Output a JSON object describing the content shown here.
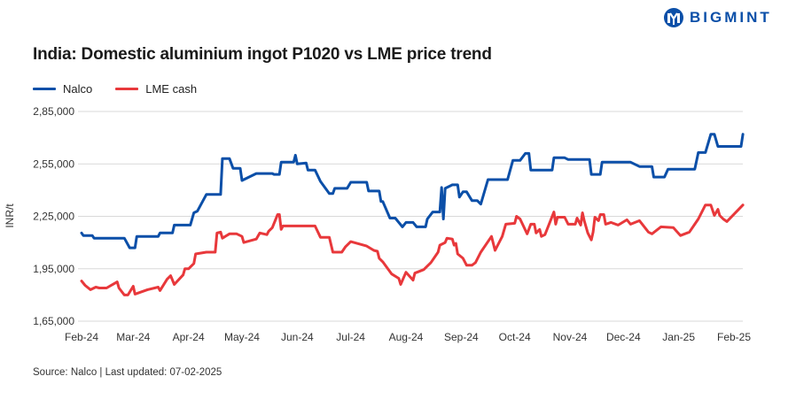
{
  "brand": {
    "name": "BIGMINT",
    "color": "#0b4fa8"
  },
  "source_note": "Source: Nalco | Last updated: 07-02-2025",
  "chart_data": {
    "type": "line",
    "title": "India: Domestic aluminium ingot P1020 vs LME price trend",
    "ylabel": "INR/t",
    "xlabel": "",
    "ylim": [
      165000,
      285000
    ],
    "xlim": [
      "2024-02-01",
      "2025-02-06"
    ],
    "grid": "horizontal",
    "legend_placement": "top-left",
    "y_ticks": [
      {
        "value": 165000,
        "label": "1,65,000"
      },
      {
        "value": 195000,
        "label": "1,95,000"
      },
      {
        "value": 225000,
        "label": "2,25,000"
      },
      {
        "value": 255000,
        "label": "2,55,000"
      },
      {
        "value": 285000,
        "label": "2,85,000"
      }
    ],
    "x_ticks": [
      {
        "value": "2024-02-01",
        "label": "Feb-24"
      },
      {
        "value": "2024-03-01",
        "label": "Mar-24"
      },
      {
        "value": "2024-04-01",
        "label": "Apr-24"
      },
      {
        "value": "2024-05-01",
        "label": "May-24"
      },
      {
        "value": "2024-06-01",
        "label": "Jun-24"
      },
      {
        "value": "2024-07-01",
        "label": "Jul-24"
      },
      {
        "value": "2024-08-01",
        "label": "Aug-24"
      },
      {
        "value": "2024-09-01",
        "label": "Sep-24"
      },
      {
        "value": "2024-10-01",
        "label": "Oct-24"
      },
      {
        "value": "2024-11-01",
        "label": "Nov-24"
      },
      {
        "value": "2024-12-01",
        "label": "Dec-24"
      },
      {
        "value": "2025-01-01",
        "label": "Jan-25"
      },
      {
        "value": "2025-02-01",
        "label": "Feb-25"
      }
    ],
    "series": [
      {
        "name": "Nalco",
        "color": "#0b4fa8",
        "points": [
          [
            "2024-02-01",
            215500
          ],
          [
            "2024-02-02",
            214000
          ],
          [
            "2024-02-07",
            214000
          ],
          [
            "2024-02-08",
            212500
          ],
          [
            "2024-02-25",
            212500
          ],
          [
            "2024-02-28",
            207000
          ],
          [
            "2024-03-02",
            207000
          ],
          [
            "2024-03-03",
            213500
          ],
          [
            "2024-03-15",
            213500
          ],
          [
            "2024-03-16",
            215500
          ],
          [
            "2024-03-23",
            215500
          ],
          [
            "2024-03-24",
            220000
          ],
          [
            "2024-04-02",
            220000
          ],
          [
            "2024-04-04",
            227000
          ],
          [
            "2024-04-06",
            228000
          ],
          [
            "2024-04-11",
            237500
          ],
          [
            "2024-04-19",
            237500
          ],
          [
            "2024-04-20",
            258000
          ],
          [
            "2024-04-24",
            258000
          ],
          [
            "2024-04-26",
            252500
          ],
          [
            "2024-04-30",
            252500
          ],
          [
            "2024-05-01",
            245500
          ],
          [
            "2024-05-09",
            249500
          ],
          [
            "2024-05-18",
            249500
          ],
          [
            "2024-05-19",
            249000
          ],
          [
            "2024-05-22",
            249000
          ],
          [
            "2024-05-23",
            256000
          ],
          [
            "2024-05-30",
            256000
          ],
          [
            "2024-05-31",
            260000
          ],
          [
            "2024-06-01",
            255000
          ],
          [
            "2024-06-06",
            255500
          ],
          [
            "2024-06-07",
            251500
          ],
          [
            "2024-06-11",
            251500
          ],
          [
            "2024-06-14",
            245000
          ],
          [
            "2024-06-19",
            238000
          ],
          [
            "2024-06-21",
            238000
          ],
          [
            "2024-06-22",
            241000
          ],
          [
            "2024-06-29",
            241000
          ],
          [
            "2024-07-01",
            244500
          ],
          [
            "2024-07-10",
            244500
          ],
          [
            "2024-07-11",
            239500
          ],
          [
            "2024-07-17",
            239500
          ],
          [
            "2024-07-18",
            233500
          ],
          [
            "2024-07-19",
            233500
          ],
          [
            "2024-07-23",
            224000
          ],
          [
            "2024-07-26",
            224000
          ],
          [
            "2024-07-30",
            219000
          ],
          [
            "2024-08-01",
            221500
          ],
          [
            "2024-08-05",
            221500
          ],
          [
            "2024-08-07",
            219000
          ],
          [
            "2024-08-12",
            219000
          ],
          [
            "2024-08-13",
            223500
          ],
          [
            "2024-08-16",
            227500
          ],
          [
            "2024-08-20",
            227500
          ],
          [
            "2024-08-21",
            241500
          ],
          [
            "2024-08-22",
            223500
          ],
          [
            "2024-08-23",
            241000
          ],
          [
            "2024-08-27",
            243000
          ],
          [
            "2024-08-30",
            243000
          ],
          [
            "2024-08-31",
            236000
          ],
          [
            "2024-09-02",
            239000
          ],
          [
            "2024-09-04",
            239000
          ],
          [
            "2024-09-07",
            234000
          ],
          [
            "2024-09-10",
            234000
          ],
          [
            "2024-09-12",
            232000
          ],
          [
            "2024-09-16",
            246000
          ],
          [
            "2024-09-27",
            246000
          ],
          [
            "2024-09-30",
            257000
          ],
          [
            "2024-10-04",
            257000
          ],
          [
            "2024-10-07",
            261000
          ],
          [
            "2024-10-09",
            261000
          ],
          [
            "2024-10-10",
            251500
          ],
          [
            "2024-10-22",
            251500
          ],
          [
            "2024-10-23",
            258500
          ],
          [
            "2024-10-29",
            258500
          ],
          [
            "2024-10-31",
            257500
          ],
          [
            "2024-11-12",
            257500
          ],
          [
            "2024-11-13",
            249000
          ],
          [
            "2024-11-18",
            249000
          ],
          [
            "2024-11-19",
            256000
          ],
          [
            "2024-12-05",
            256000
          ],
          [
            "2024-12-10",
            253500
          ],
          [
            "2024-12-17",
            253500
          ],
          [
            "2024-12-18",
            247500
          ],
          [
            "2024-12-24",
            247500
          ],
          [
            "2024-12-26",
            252000
          ],
          [
            "2025-01-10",
            252000
          ],
          [
            "2025-01-12",
            261500
          ],
          [
            "2025-01-16",
            261500
          ],
          [
            "2025-01-19",
            272000
          ],
          [
            "2025-01-21",
            272000
          ],
          [
            "2025-01-23",
            265000
          ],
          [
            "2025-02-05",
            265000
          ],
          [
            "2025-02-06",
            272000
          ]
        ]
      },
      {
        "name": "LME cash",
        "color": "#e8383b",
        "points": [
          [
            "2024-02-01",
            188000
          ],
          [
            "2024-02-03",
            185500
          ],
          [
            "2024-02-06",
            183000
          ],
          [
            "2024-02-09",
            184500
          ],
          [
            "2024-02-11",
            184000
          ],
          [
            "2024-02-15",
            184000
          ],
          [
            "2024-02-21",
            187500
          ],
          [
            "2024-02-22",
            184000
          ],
          [
            "2024-02-25",
            180000
          ],
          [
            "2024-02-27",
            180000
          ],
          [
            "2024-03-01",
            185000
          ],
          [
            "2024-03-02",
            180500
          ],
          [
            "2024-03-09",
            183000
          ],
          [
            "2024-03-15",
            184500
          ],
          [
            "2024-03-16",
            182500
          ],
          [
            "2024-03-20",
            189000
          ],
          [
            "2024-03-22",
            191000
          ],
          [
            "2024-03-24",
            186000
          ],
          [
            "2024-03-29",
            191500
          ],
          [
            "2024-03-30",
            195000
          ],
          [
            "2024-04-01",
            195000
          ],
          [
            "2024-04-04",
            198000
          ],
          [
            "2024-04-05",
            203500
          ],
          [
            "2024-04-11",
            204500
          ],
          [
            "2024-04-16",
            204500
          ],
          [
            "2024-04-17",
            215500
          ],
          [
            "2024-04-19",
            216000
          ],
          [
            "2024-04-20",
            212500
          ],
          [
            "2024-04-24",
            215000
          ],
          [
            "2024-04-28",
            215000
          ],
          [
            "2024-05-01",
            213500
          ],
          [
            "2024-05-02",
            210000
          ],
          [
            "2024-05-09",
            212000
          ],
          [
            "2024-05-11",
            215500
          ],
          [
            "2024-05-15",
            214500
          ],
          [
            "2024-05-16",
            216500
          ],
          [
            "2024-05-18",
            218500
          ],
          [
            "2024-05-21",
            226000
          ],
          [
            "2024-05-22",
            226000
          ],
          [
            "2024-05-23",
            217500
          ],
          [
            "2024-05-24",
            219500
          ],
          [
            "2024-06-11",
            219500
          ],
          [
            "2024-06-14",
            213000
          ],
          [
            "2024-06-19",
            213000
          ],
          [
            "2024-06-21",
            204500
          ],
          [
            "2024-06-26",
            204500
          ],
          [
            "2024-06-28",
            207500
          ],
          [
            "2024-07-01",
            210500
          ],
          [
            "2024-07-10",
            208000
          ],
          [
            "2024-07-14",
            205500
          ],
          [
            "2024-07-16",
            205000
          ],
          [
            "2024-07-17",
            201000
          ],
          [
            "2024-07-19",
            199000
          ],
          [
            "2024-07-24",
            192000
          ],
          [
            "2024-07-28",
            189500
          ],
          [
            "2024-07-29",
            186000
          ],
          [
            "2024-08-01",
            193000
          ],
          [
            "2024-08-05",
            188500
          ],
          [
            "2024-08-06",
            192500
          ],
          [
            "2024-08-11",
            194500
          ],
          [
            "2024-08-15",
            198500
          ],
          [
            "2024-08-19",
            204500
          ],
          [
            "2024-08-20",
            208500
          ],
          [
            "2024-08-23",
            210000
          ],
          [
            "2024-08-24",
            212500
          ],
          [
            "2024-08-27",
            212000
          ],
          [
            "2024-08-28",
            208500
          ],
          [
            "2024-08-29",
            209500
          ],
          [
            "2024-08-30",
            203500
          ],
          [
            "2024-09-02",
            201000
          ],
          [
            "2024-09-04",
            197000
          ],
          [
            "2024-09-07",
            197000
          ],
          [
            "2024-09-09",
            198500
          ],
          [
            "2024-09-12",
            204500
          ],
          [
            "2024-09-18",
            213500
          ],
          [
            "2024-09-20",
            205500
          ],
          [
            "2024-09-24",
            213500
          ],
          [
            "2024-09-26",
            220500
          ],
          [
            "2024-10-01",
            221000
          ],
          [
            "2024-10-02",
            225000
          ],
          [
            "2024-10-04",
            223500
          ],
          [
            "2024-10-08",
            215000
          ],
          [
            "2024-10-10",
            220500
          ],
          [
            "2024-10-12",
            220500
          ],
          [
            "2024-10-13",
            215500
          ],
          [
            "2024-10-15",
            217500
          ],
          [
            "2024-10-16",
            213500
          ],
          [
            "2024-10-18",
            214500
          ],
          [
            "2024-10-23",
            227500
          ],
          [
            "2024-10-24",
            220500
          ],
          [
            "2024-10-25",
            224500
          ],
          [
            "2024-10-29",
            224500
          ],
          [
            "2024-10-31",
            220500
          ],
          [
            "2024-11-04",
            220500
          ],
          [
            "2024-11-05",
            224000
          ],
          [
            "2024-11-07",
            220000
          ],
          [
            "2024-11-08",
            227000
          ],
          [
            "2024-11-09",
            222500
          ],
          [
            "2024-11-11",
            215500
          ],
          [
            "2024-11-13",
            211500
          ],
          [
            "2024-11-14",
            216000
          ],
          [
            "2024-11-15",
            224500
          ],
          [
            "2024-11-17",
            222500
          ],
          [
            "2024-11-18",
            226000
          ],
          [
            "2024-11-20",
            226000
          ],
          [
            "2024-11-21",
            220500
          ],
          [
            "2024-11-24",
            221500
          ],
          [
            "2024-11-28",
            220000
          ],
          [
            "2024-12-03",
            223000
          ],
          [
            "2024-12-05",
            220500
          ],
          [
            "2024-12-10",
            222500
          ],
          [
            "2024-12-15",
            216000
          ],
          [
            "2024-12-17",
            215000
          ],
          [
            "2024-12-22",
            219000
          ],
          [
            "2024-12-29",
            218500
          ],
          [
            "2025-01-02",
            214000
          ],
          [
            "2025-01-07",
            216000
          ],
          [
            "2025-01-10",
            220500
          ],
          [
            "2025-01-12",
            223500
          ],
          [
            "2025-01-16",
            231500
          ],
          [
            "2025-01-19",
            231500
          ],
          [
            "2025-01-21",
            225500
          ],
          [
            "2025-01-23",
            229000
          ],
          [
            "2025-01-24",
            225500
          ],
          [
            "2025-01-26",
            223500
          ],
          [
            "2025-01-28",
            222000
          ],
          [
            "2025-02-06",
            231500
          ]
        ]
      }
    ]
  }
}
